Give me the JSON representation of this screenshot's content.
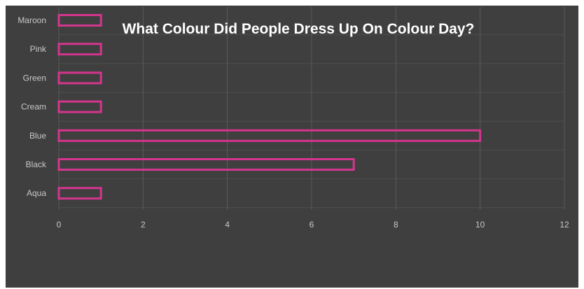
{
  "chart_data": {
    "type": "bar",
    "orientation": "horizontal",
    "title": "What Colour Did People Dress Up On Colour Day?",
    "categories": [
      "Maroon",
      "Pink",
      "Green",
      "Cream",
      "Blue",
      "Black",
      "Aqua"
    ],
    "values": [
      1,
      1,
      1,
      1,
      10,
      7,
      1
    ],
    "xlim": [
      0,
      12
    ],
    "xticks": [
      "0",
      "2",
      "4",
      "6",
      "8",
      "10",
      "12"
    ],
    "grid": "vertical",
    "bar_style": "outlined",
    "colors": {
      "background": "#3f3f3f",
      "bar_outline": "#d4358e",
      "gridline": "#5a5a5a",
      "tick_text": "#c8c8c8",
      "title_text": "#ffffff"
    }
  }
}
